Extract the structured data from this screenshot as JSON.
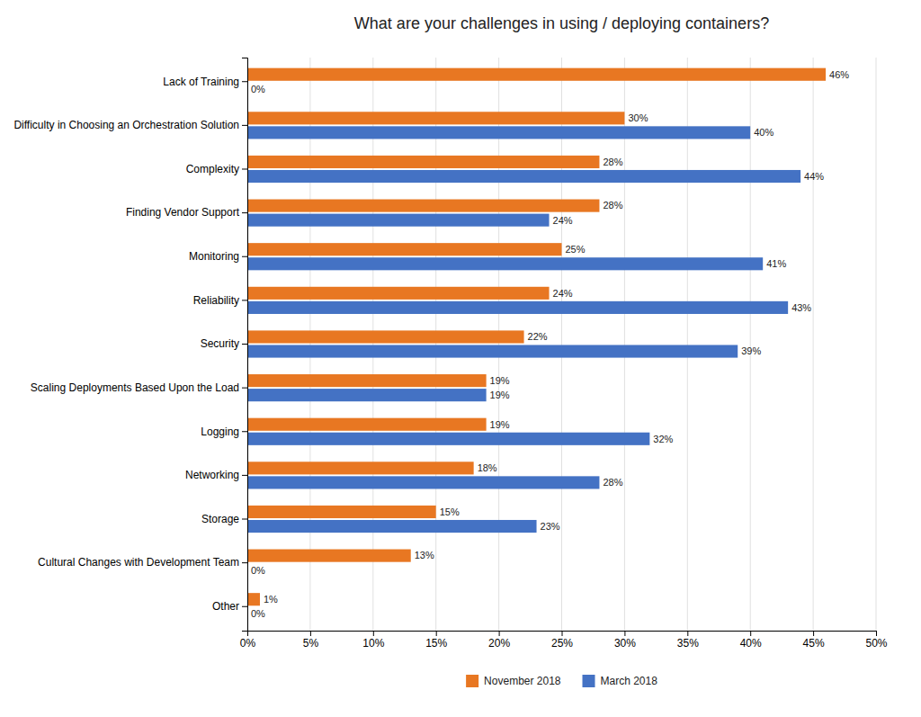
{
  "chart_data": {
    "type": "bar",
    "orientation": "horizontal",
    "title": "What are your challenges in using / deploying containers?",
    "categories": [
      "Other",
      "Cultural Changes with Development Team",
      "Storage",
      "Networking",
      "Logging",
      "Scaling Deployments Based Upon the Load",
      "Security",
      "Reliability",
      "Monitoring",
      "Finding Vendor Support",
      "Complexity",
      "Difficulty in Choosing an Orchestration Solution",
      "Lack of Training"
    ],
    "series": [
      {
        "name": "November 2018",
        "color": "#E87722",
        "values": [
          1,
          13,
          15,
          18,
          19,
          19,
          22,
          24,
          25,
          28,
          28,
          30,
          46
        ],
        "value_labels": [
          "1%",
          "13%",
          "15%",
          "18%",
          "19%",
          "19%",
          "22%",
          "24%",
          "25%",
          "28%",
          "28%",
          "30%",
          "46%"
        ]
      },
      {
        "name": "March 2018",
        "color": "#4472C4",
        "values": [
          0,
          0,
          23,
          28,
          32,
          19,
          39,
          43,
          41,
          24,
          44,
          40,
          0
        ],
        "value_labels": [
          "0%",
          "0%",
          "23%",
          "28%",
          "32%",
          "19%",
          "39%",
          "43%",
          "41%",
          "24%",
          "44%",
          "40%",
          "0%"
        ]
      }
    ],
    "xlim": [
      0,
      50
    ],
    "xticks": [
      {
        "value": 0,
        "label": "0%"
      },
      {
        "value": 5,
        "label": "5%"
      },
      {
        "value": 10,
        "label": "10%"
      },
      {
        "value": 15,
        "label": "15%"
      },
      {
        "value": 20,
        "label": "20%"
      },
      {
        "value": 25,
        "label": "25%"
      },
      {
        "value": 30,
        "label": "30%"
      },
      {
        "value": 35,
        "label": "35%"
      },
      {
        "value": 40,
        "label": "40%"
      },
      {
        "value": 45,
        "label": "45%"
      },
      {
        "value": 50,
        "label": "50%"
      }
    ],
    "grid": true,
    "legend": "bottom",
    "data_labels": true
  }
}
